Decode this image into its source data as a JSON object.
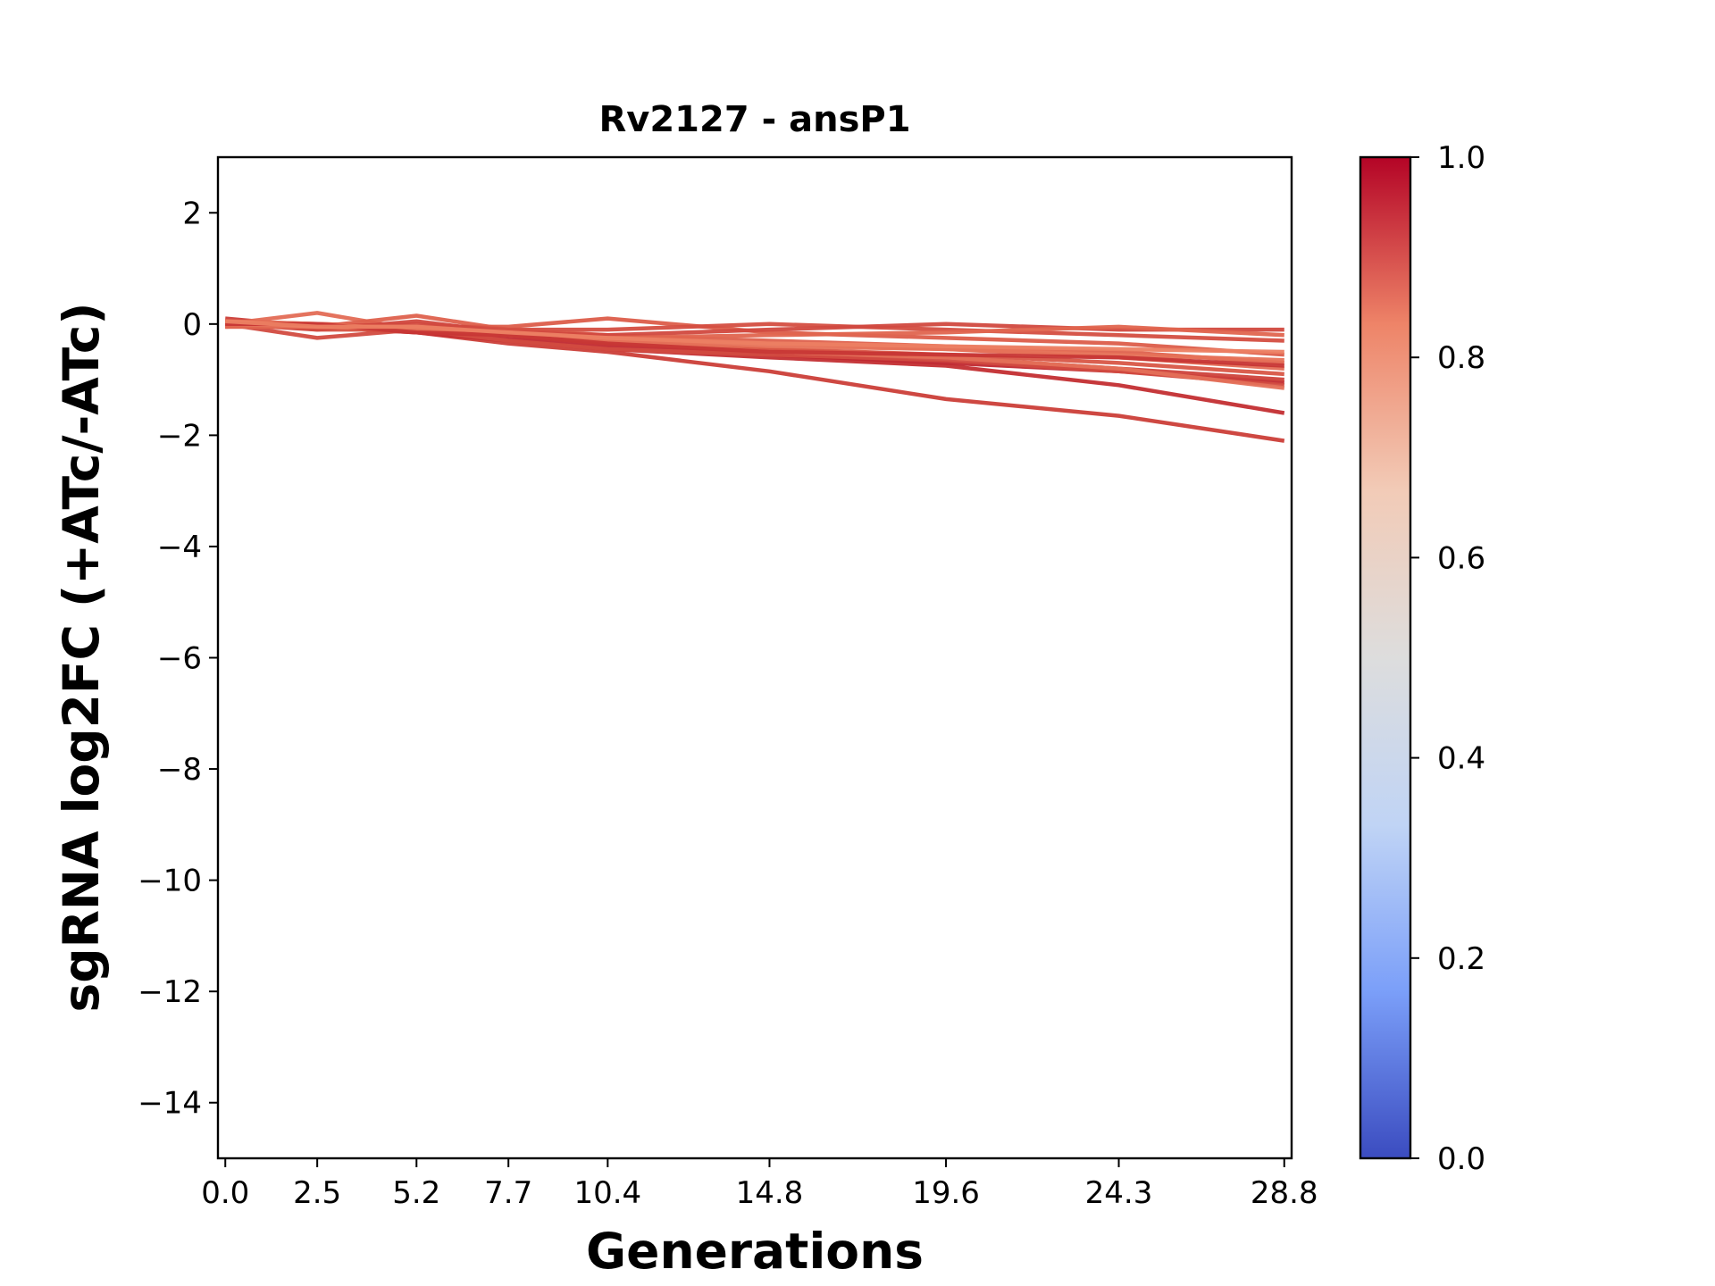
{
  "chart_data": {
    "type": "line",
    "title": "Rv2127 - ansP1",
    "xlabel": "Generations",
    "ylabel": "sgRNA log2FC (+ATc/-ATc)",
    "x": [
      0.0,
      2.5,
      5.2,
      7.7,
      10.4,
      14.8,
      19.6,
      24.3,
      28.8
    ],
    "x_tick_labels": [
      "0.0",
      "2.5",
      "5.2",
      "7.7",
      "10.4",
      "14.8",
      "19.6",
      "24.3",
      "28.8"
    ],
    "xlim": [
      -0.2,
      29.0
    ],
    "ylim": [
      -15,
      3
    ],
    "y_ticks": [
      2,
      0,
      -2,
      -4,
      -6,
      -8,
      -10,
      -12,
      -14
    ],
    "y_tick_labels": [
      "2",
      "0",
      "−2",
      "−4",
      "−6",
      "−8",
      "−10",
      "−12",
      "−14"
    ],
    "grid": false,
    "colormap": "coolwarm",
    "colorbar": {
      "range": [
        0.0,
        1.0
      ],
      "ticks": [
        0.0,
        0.2,
        0.4,
        0.6,
        0.8,
        1.0
      ],
      "tick_labels": [
        "0.0",
        "0.2",
        "0.4",
        "0.6",
        "0.8",
        "1.0"
      ],
      "colors": [
        "#3b4cc0",
        "#7b9ff9",
        "#c0d4f5",
        "#dddddd",
        "#f2cbb7",
        "#ee8468",
        "#b40426"
      ]
    },
    "series": [
      {
        "values": [
          0.1,
          -0.05,
          -0.15,
          -0.35,
          -0.5,
          -0.85,
          -1.35,
          -1.65,
          -2.1
        ],
        "color": "#cb3e38"
      },
      {
        "values": [
          0.0,
          -0.05,
          -0.15,
          -0.3,
          -0.45,
          -0.6,
          -0.75,
          -1.1,
          -1.6
        ],
        "color": "#c32e31"
      },
      {
        "values": [
          0.05,
          -0.05,
          -0.1,
          -0.25,
          -0.4,
          -0.55,
          -0.7,
          -0.85,
          -1.05
        ],
        "color": "#c0282f"
      },
      {
        "values": [
          0.0,
          -0.25,
          -0.1,
          -0.3,
          -0.45,
          -0.55,
          -0.65,
          -0.85,
          -1.1
        ],
        "color": "#d24b40"
      },
      {
        "values": [
          -0.05,
          0.0,
          -0.05,
          -0.2,
          -0.35,
          -0.45,
          -0.6,
          -0.8,
          -1.0
        ],
        "color": "#cd423b"
      },
      {
        "values": [
          0.05,
          -0.1,
          -0.1,
          -0.2,
          -0.3,
          -0.45,
          -0.55,
          -0.7,
          -0.9
        ],
        "color": "#d85646"
      },
      {
        "values": [
          0.0,
          0.2,
          -0.1,
          -0.15,
          -0.25,
          -0.35,
          -0.45,
          -0.6,
          -0.8
        ],
        "color": "#e36c55"
      },
      {
        "values": [
          -0.05,
          -0.05,
          0.15,
          -0.1,
          -0.2,
          -0.3,
          -0.4,
          -0.5,
          -0.7
        ],
        "color": "#de614d"
      },
      {
        "values": [
          0.05,
          0.0,
          -0.05,
          -0.05,
          0.1,
          -0.15,
          -0.25,
          -0.35,
          -0.55
        ],
        "color": "#dc5d4a"
      },
      {
        "values": [
          0.0,
          -0.05,
          0.0,
          -0.1,
          -0.1,
          0.0,
          -0.1,
          -0.2,
          -0.3
        ],
        "color": "#d44e41"
      },
      {
        "values": [
          0.0,
          -0.1,
          0.05,
          -0.15,
          -0.2,
          -0.1,
          0.0,
          -0.1,
          -0.1
        ],
        "color": "#d1493f"
      },
      {
        "values": [
          -0.05,
          -0.05,
          -0.05,
          -0.2,
          -0.25,
          -0.2,
          -0.15,
          -0.05,
          -0.2
        ],
        "color": "#e0654f"
      },
      {
        "values": [
          0.05,
          0.0,
          -0.1,
          -0.15,
          -0.3,
          -0.4,
          -0.45,
          -0.55,
          -0.65
        ],
        "color": "#e67259"
      },
      {
        "values": [
          0.0,
          -0.05,
          -0.1,
          -0.2,
          -0.3,
          -0.5,
          -0.6,
          -0.8,
          -1.15
        ],
        "color": "#e47058"
      },
      {
        "values": [
          0.0,
          0.0,
          -0.15,
          -0.2,
          -0.35,
          -0.5,
          -0.55,
          -0.6,
          -0.75
        ],
        "color": "#c73635"
      },
      {
        "values": [
          0.05,
          -0.05,
          -0.05,
          -0.15,
          -0.25,
          -0.35,
          -0.4,
          -0.45,
          -0.5
        ],
        "color": "#ec7f63"
      }
    ]
  }
}
